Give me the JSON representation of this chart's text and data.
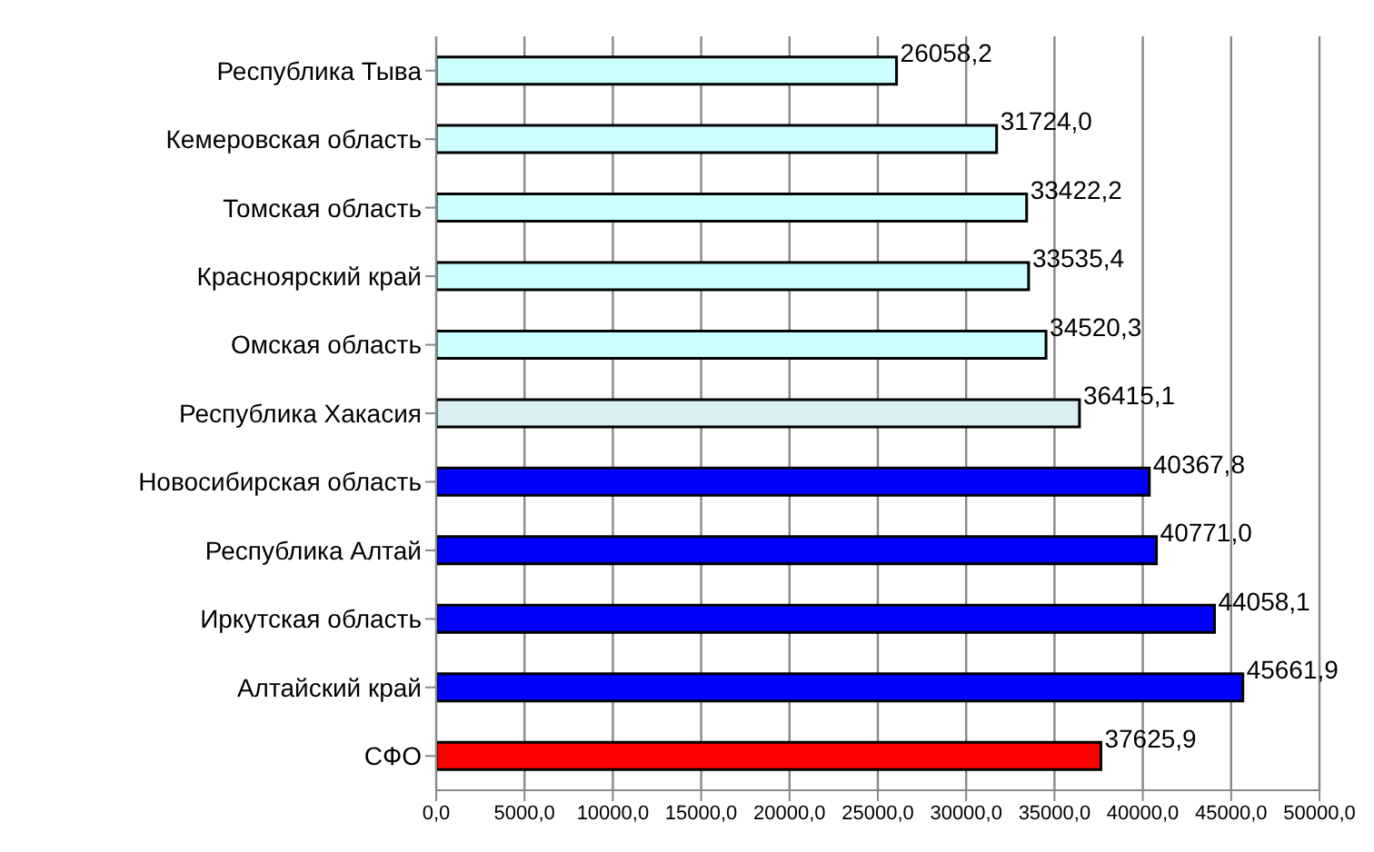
{
  "chart_data": {
    "type": "bar",
    "orientation": "horizontal",
    "categories": [
      "Республика Тыва",
      "Кемеровская область",
      "Томская область",
      "Красноярский край",
      "Омская область",
      "Республика Хакасия",
      "Новосибирская область",
      "Республика Алтай",
      "Иркутская область",
      "Алтайский край",
      "СФО"
    ],
    "values": [
      26058.2,
      31724.0,
      33422.2,
      33535.4,
      34520.3,
      36415.1,
      40367.8,
      40771.0,
      44058.1,
      45661.9,
      37625.9
    ],
    "value_labels": [
      "26058,2",
      "31724,0",
      "33422,2",
      "33535,4",
      "34520,3",
      "36415,1",
      "40367,8",
      "40771,0",
      "44058,1",
      "45661,9",
      "37625,9"
    ],
    "colors": [
      "#ccffff",
      "#ccffff",
      "#ccffff",
      "#ccffff",
      "#ccffff",
      "#daeef3",
      "#0000ff",
      "#0000ff",
      "#0000ff",
      "#0000ff",
      "#ff0000"
    ],
    "xlim": [
      0,
      50000
    ],
    "xticks": [
      {
        "value": 0,
        "label": "0,0"
      },
      {
        "value": 5000,
        "label": "5000,0"
      },
      {
        "value": 10000,
        "label": "10000,0"
      },
      {
        "value": 15000,
        "label": "15000,0"
      },
      {
        "value": 20000,
        "label": "20000,0"
      },
      {
        "value": 25000,
        "label": "25000,0"
      },
      {
        "value": 30000,
        "label": "30000,0"
      },
      {
        "value": 35000,
        "label": "35000,0"
      },
      {
        "value": 40000,
        "label": "40000,0"
      },
      {
        "value": 45000,
        "label": "45000,0"
      },
      {
        "value": 50000,
        "label": "50000,0"
      }
    ],
    "grid": "x"
  }
}
